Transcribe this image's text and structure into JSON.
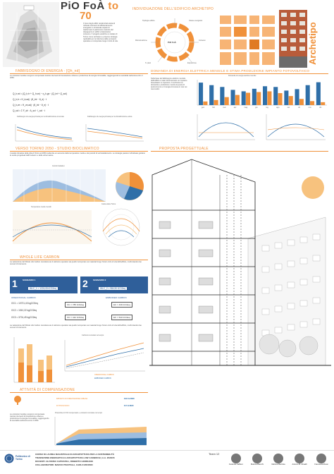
{
  "header": {
    "title_line1": "PiO FoÀ",
    "title_to": "to",
    "title_70": "70",
    "vertical_label": "Archetipo",
    "intro_text": "Il riuso degli edifici residenziali esistenti richiede interventi di efficientamento energetico e strutturale capaci di trasformare il patrimonio costruito del dopoguerra in edifici a bassissimo consumo. Il progetto analizza un isolato di Torino come archetipo e propone strategie replicabili per la riduzione delle emissioni operative e incorporate lungo il ciclo di vita."
  },
  "sections": {
    "archetype": "INDIVIDUAZIONE DELL'EDIFICIO ARCHETIPO",
    "energy_need": "FABBISOGNO DI ENERGIA - [Qh_nd]",
    "electric_demand": "DOMANDA DI ENERGIA ELETTRICA MENSILE E STIMA PRODUZIONE IMPIANTO FOTOVOLTAICO",
    "torino2050": "VERSO TORINO 2050 - STUDIO BIOCLIMATICO",
    "proposal": "PROPOSTA PROGETTUALE",
    "wlc": "WHOLE LIFE CARBON",
    "compensation": "ATTIVITÀ DI COMPENSAZIONE"
  },
  "donut_labels": {
    "top_left": "Tipologie edilizie",
    "top_right": "Classe energetica",
    "left": "Ristrutturazione",
    "right": "Contesto",
    "bottom_left": "N. piani",
    "bottom_right": "Esposizione",
    "center": "PiO FoÀ"
  },
  "energy_formulas": [
    "Q_h,nd = (Q_h,tr + Q_h,ve) − η_h,gn · (Q_int + Q_sol)",
    "Q_h,tr = H_tr,adj · (θ_int − θ_e) · t",
    "Q_h,ve = H_ve,adj · (θ_int − θ_e) · t",
    "Q_sol = Σ F_sh · A_sol · I_sol · t"
  ],
  "energy_charts": {
    "left_title": "Fabbisogno di energia primaria per la climatizzazione invernale",
    "right_title": "Fabbisogno di energia primaria per la climatizzazione estiva"
  },
  "electric_text": "Sulla base del fabbisogno elettrico mensile dell'edificio è stato dimensionato un impianto fotovoltaico in copertura. Il confronto tra domanda e produzione mostra la quota di autoconsumo e l'energia immessa in rete nei mesi estivi.",
  "electric_chart": {
    "title": "Domanda di energia elettrica mensile",
    "legend": [
      "Domanda",
      "Produzione FV"
    ],
    "months": [
      "gen",
      "feb",
      "mar",
      "apr",
      "mag",
      "giu",
      "lug",
      "ago",
      "set",
      "ott",
      "nov",
      "dic"
    ],
    "demand": [
      62,
      55,
      50,
      42,
      38,
      45,
      52,
      50,
      40,
      44,
      55,
      63
    ],
    "production": [
      10,
      14,
      22,
      28,
      34,
      36,
      38,
      33,
      25,
      17,
      11,
      8
    ]
  },
  "bioclimatic": {
    "text": "L'analisi climatica della città di Torino al 2050 evidenzia un aumento delle temperature medie e dei periodi di surriscaldamento. Le strategie passive individuate guidano le scelte progettuali dell'involucro e delle schermature.",
    "chart1_title": "Comfort Adattivo",
    "chart2_title": "Temperature medie mensili",
    "chart3_title": "Carta solare Torino",
    "pie_values": [
      38,
      27,
      20,
      15
    ]
  },
  "wlc": {
    "text": "La valutazione del Whole Life Carbon considera sia il carbonio operativo sia quello incorporato nei materiali lungo l'intero ciclo di vita dell'edificio, confrontando due scenari di intervento.",
    "scenario1_num": "1",
    "scenario1_title": "SCENARIO 1",
    "scenario1_line": "WLC_1 = 1224,05 tCO2eq",
    "scenario2_num": "2",
    "scenario2_title": "SCENARIO 2",
    "scenario2_line": "WLC_2 = 984,90 tCO2eq",
    "operational_title": "OPERATIONAL CARBON",
    "embodied_title": "EMBODIED CARBON",
    "oc_lines": [
      "OC1 = 10721,43 kgCO2eq",
      "OC2 = 1510,22 kgCO2eq",
      "OC3 = 3701,49 kgCO2eq"
    ],
    "oc_box": "OC = 785 tCO2eq",
    "oc_box2": "OC = 442 tCO2eq",
    "ec_box": "EC = 439 tCO2eq",
    "ec_box2": "EC = 543 tCO2eq",
    "bar_legend": [
      "OPERATIONAL CARBON",
      "EMBODIED CARBON"
    ],
    "line_chart_title": "Carbonio cumulato nel tempo"
  },
  "compensation": {
    "row1_label": "IMPIANTO DI FORESTAZIONE URBANA",
    "row1_value": "3914 ALBERI",
    "row2_label": "FOTOVOLTAICO",
    "row2_value": "817 ALBERI",
    "chart_title": "Potenziale di CO2 compensato e emissioni cumulate nel tempo",
    "text": "Le emissioni residue vengono compensate tramite interventi di forestazione urbana e produzione di energia rinnovabile, raggiungendo la neutralità carbonica entro il 2050."
  },
  "footer": {
    "university": "Politecnico di Torino",
    "course": "CORSO DI LAUREA MAGISTRALE IN ARCHITETTURA PER LA SOSTENIBILITÀ",
    "workshop": "TRANSIZIONE ENERGETICA E ARCHITETTURA LOW CARBON B | A.A. 2022/23",
    "teachers": "DOCENTI: ALFONSO CAPOZZOLI, ROBERTO GIORDANO",
    "collaborators": "COLLABORATORI: MARCO PISCITELLI, CARLO MICONO",
    "team": "Team 12",
    "members": [
      "Federica Caffiero",
      "Martina Bianchi",
      "Martina Mazzola",
      "Antonio M. Rinaldi",
      "Francesca Rossi"
    ]
  },
  "colors": {
    "accent": "#f0913a",
    "blue": "#2f6fa8",
    "dark_blue": "#2f5f9a",
    "light_orange": "#f7c27e"
  }
}
